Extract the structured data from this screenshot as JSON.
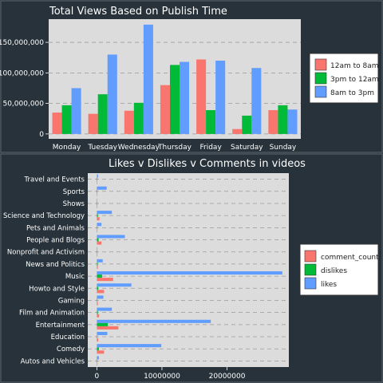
{
  "chart_data": [
    {
      "type": "bar",
      "title": "Total Views Based on Publish Time",
      "xlabel": "",
      "ylabel": "",
      "categories": [
        "Monday",
        "Tuesday",
        "Wednesday",
        "Thursday",
        "Friday",
        "Saturday",
        "Sunday"
      ],
      "series": [
        {
          "name": "12am to 8am",
          "color": "#f8766d",
          "values": [
            35000000,
            33000000,
            38000000,
            80000000,
            122000000,
            8000000,
            39000000
          ]
        },
        {
          "name": "3pm to 12am",
          "color": "#00ba38",
          "values": [
            47000000,
            65000000,
            51000000,
            113000000,
            39000000,
            30000000,
            47000000
          ]
        },
        {
          "name": "8am to 3pm",
          "color": "#619cff",
          "values": [
            75000000,
            130000000,
            179000000,
            118000000,
            120000000,
            108000000,
            40000000
          ]
        }
      ],
      "yticks": [
        0,
        50000000,
        100000000,
        150000000
      ],
      "ytick_labels": [
        "0",
        "50,000,000",
        "100,000,000",
        "150,000,000"
      ],
      "ylim": [
        -8000000,
        188000000
      ],
      "grid": true,
      "legend": "right"
    },
    {
      "type": "bar",
      "orientation": "horizontal",
      "title": "Likes v Dislikes v Comments in videos",
      "xlabel": "",
      "ylabel": "",
      "categories": [
        "Autos and Vehicles",
        "Comedy",
        "Education",
        "Entertainment",
        "Film and Animation",
        "Gaming",
        "Howto and Style",
        "Music",
        "News and Politics",
        "Nonprofit and Activism",
        "People and Blogs",
        "Pets and Animals",
        "Science and Technology",
        "Shows",
        "Sports",
        "Travel and Events"
      ],
      "series": [
        {
          "name": "comment_count",
          "color": "#f8766d",
          "values": [
            20000,
            1100000,
            200000,
            3300000,
            350000,
            150000,
            1100000,
            2500000,
            150000,
            5000,
            700000,
            80000,
            400000,
            10000,
            50000,
            30000
          ]
        },
        {
          "name": "dislikes",
          "color": "#00ba38",
          "values": [
            10000,
            300000,
            60000,
            1700000,
            150000,
            60000,
            200000,
            800000,
            120000,
            2000,
            250000,
            20000,
            150000,
            5000,
            40000,
            10000
          ]
        },
        {
          "name": "likes",
          "color": "#619cff",
          "values": [
            300000,
            9900000,
            1600000,
            17500000,
            2300000,
            1000000,
            5300000,
            28500000,
            900000,
            60000,
            4300000,
            700000,
            2300000,
            50000,
            1500000,
            180000
          ]
        }
      ],
      "xticks": [
        0,
        10000000,
        20000000
      ],
      "xtick_labels": [
        "0",
        "10000000",
        "20000000"
      ],
      "xlim": [
        -1400000,
        29500000
      ],
      "grid": true,
      "legend": "right"
    }
  ]
}
